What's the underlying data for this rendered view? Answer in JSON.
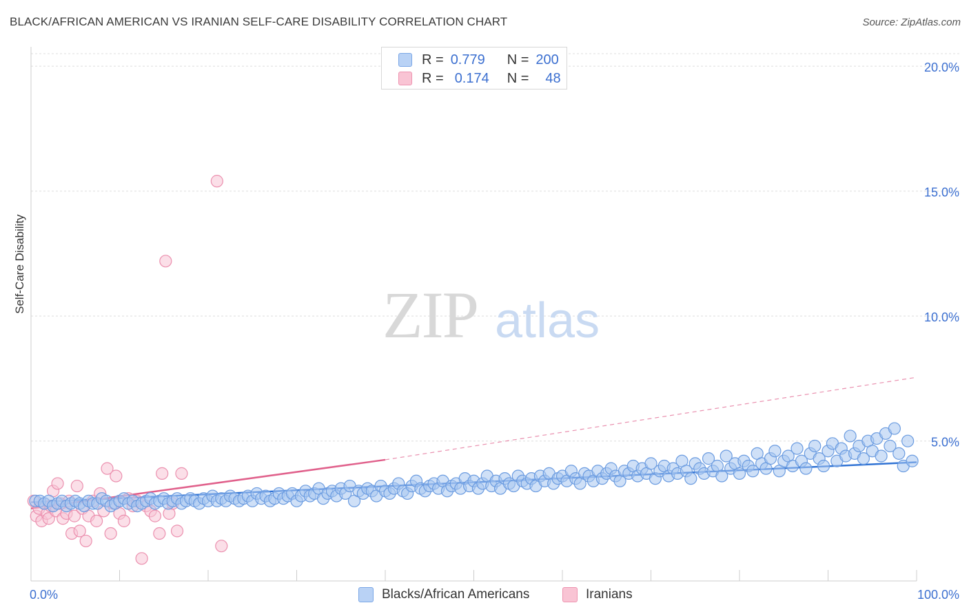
{
  "header": {
    "title": "BLACK/AFRICAN AMERICAN VS IRANIAN SELF-CARE DISABILITY CORRELATION CHART",
    "source": "Source: ZipAtlas.com"
  },
  "legend": {
    "r_label": "R =",
    "n_label": "N =",
    "series": [
      {
        "r": "0.779",
        "n": "200",
        "swatch_fill": "#b9d2f5",
        "swatch_stroke": "#7aa6e6"
      },
      {
        "r": "0.174",
        "n": "48",
        "swatch_fill": "#f9c4d4",
        "swatch_stroke": "#ee93b0"
      }
    ]
  },
  "watermark": {
    "zip": "ZIP",
    "atlas": "atlas"
  },
  "colors": {
    "blue_fill": "#a8c6f0",
    "blue_stroke": "#6a9be0",
    "blue_line": "#2f72d4",
    "pink_fill": "#f8c5d5",
    "pink_stroke": "#eb8fae",
    "pink_line": "#e0608b",
    "axis_text": "#3b6fd0",
    "grid": "#dddddd"
  },
  "chart_data": {
    "type": "scatter",
    "title": "BLACK/AFRICAN AMERICAN VS IRANIAN SELF-CARE DISABILITY CORRELATION CHART",
    "xlabel": "",
    "ylabel": "Self-Care Disability",
    "xlim": [
      0,
      100
    ],
    "ylim": [
      -0.6,
      20.5
    ],
    "x_tick_labels": [
      "0.0%",
      "100.0%"
    ],
    "y_ticks": [
      5,
      10,
      15,
      20
    ],
    "y_tick_labels": [
      "5.0%",
      "10.0%",
      "15.0%",
      "20.0%"
    ],
    "grid": true,
    "legend_placement": "top-center",
    "series": [
      {
        "name": "Blacks/African Americans",
        "r": 0.779,
        "n": 200,
        "trend": {
          "x0": 0,
          "y0": 2.55,
          "x1": 100,
          "y1": 4.15
        },
        "points": [
          [
            0.5,
            2.6
          ],
          [
            1,
            2.6
          ],
          [
            1.5,
            2.5
          ],
          [
            2,
            2.6
          ],
          [
            2.5,
            2.4
          ],
          [
            3,
            2.5
          ],
          [
            3.5,
            2.6
          ],
          [
            4,
            2.4
          ],
          [
            4.5,
            2.5
          ],
          [
            5,
            2.6
          ],
          [
            5.5,
            2.5
          ],
          [
            6,
            2.4
          ],
          [
            6.5,
            2.6
          ],
          [
            7,
            2.5
          ],
          [
            7.5,
            2.5
          ],
          [
            8,
            2.7
          ],
          [
            8.5,
            2.6
          ],
          [
            9,
            2.4
          ],
          [
            9.5,
            2.5
          ],
          [
            10,
            2.6
          ],
          [
            10.5,
            2.7
          ],
          [
            11,
            2.5
          ],
          [
            11.5,
            2.6
          ],
          [
            12,
            2.4
          ],
          [
            12.5,
            2.5
          ],
          [
            13,
            2.6
          ],
          [
            13.5,
            2.7
          ],
          [
            14,
            2.5
          ],
          [
            14.5,
            2.6
          ],
          [
            15,
            2.7
          ],
          [
            15.5,
            2.5
          ],
          [
            16,
            2.6
          ],
          [
            16.5,
            2.7
          ],
          [
            17,
            2.5
          ],
          [
            17.5,
            2.6
          ],
          [
            18,
            2.7
          ],
          [
            18.5,
            2.6
          ],
          [
            19,
            2.5
          ],
          [
            19.5,
            2.7
          ],
          [
            20,
            2.6
          ],
          [
            20.5,
            2.8
          ],
          [
            21,
            2.6
          ],
          [
            21.5,
            2.7
          ],
          [
            22,
            2.6
          ],
          [
            22.5,
            2.8
          ],
          [
            23,
            2.7
          ],
          [
            23.5,
            2.6
          ],
          [
            24,
            2.7
          ],
          [
            24.5,
            2.8
          ],
          [
            25,
            2.6
          ],
          [
            25.5,
            2.9
          ],
          [
            26,
            2.7
          ],
          [
            26.5,
            2.8
          ],
          [
            27,
            2.6
          ],
          [
            27.5,
            2.7
          ],
          [
            28,
            2.9
          ],
          [
            28.5,
            2.7
          ],
          [
            29,
            2.8
          ],
          [
            29.5,
            2.9
          ],
          [
            30,
            2.6
          ],
          [
            30.5,
            2.8
          ],
          [
            31,
            3.0
          ],
          [
            31.5,
            2.8
          ],
          [
            32,
            2.9
          ],
          [
            32.5,
            3.1
          ],
          [
            33,
            2.7
          ],
          [
            33.5,
            2.9
          ],
          [
            34,
            3.0
          ],
          [
            34.5,
            2.8
          ],
          [
            35,
            3.1
          ],
          [
            35.5,
            2.9
          ],
          [
            36,
            3.2
          ],
          [
            36.5,
            2.6
          ],
          [
            37,
            3.0
          ],
          [
            37.5,
            2.9
          ],
          [
            38,
            3.1
          ],
          [
            38.5,
            3.0
          ],
          [
            39,
            2.8
          ],
          [
            39.5,
            3.2
          ],
          [
            40,
            3.0
          ],
          [
            40.5,
            2.9
          ],
          [
            41,
            3.1
          ],
          [
            41.5,
            3.3
          ],
          [
            42,
            3.0
          ],
          [
            42.5,
            2.9
          ],
          [
            43,
            3.2
          ],
          [
            43.5,
            3.4
          ],
          [
            44,
            3.1
          ],
          [
            44.5,
            3.0
          ],
          [
            45,
            3.2
          ],
          [
            45.5,
            3.3
          ],
          [
            46,
            3.1
          ],
          [
            46.5,
            3.4
          ],
          [
            47,
            3.0
          ],
          [
            47.5,
            3.2
          ],
          [
            48,
            3.3
          ],
          [
            48.5,
            3.1
          ],
          [
            49,
            3.5
          ],
          [
            49.5,
            3.2
          ],
          [
            50,
            3.4
          ],
          [
            50.5,
            3.1
          ],
          [
            51,
            3.3
          ],
          [
            51.5,
            3.6
          ],
          [
            52,
            3.2
          ],
          [
            52.5,
            3.4
          ],
          [
            53,
            3.1
          ],
          [
            53.5,
            3.5
          ],
          [
            54,
            3.3
          ],
          [
            54.5,
            3.2
          ],
          [
            55,
            3.6
          ],
          [
            55.5,
            3.4
          ],
          [
            56,
            3.3
          ],
          [
            56.5,
            3.5
          ],
          [
            57,
            3.2
          ],
          [
            57.5,
            3.6
          ],
          [
            58,
            3.4
          ],
          [
            58.5,
            3.7
          ],
          [
            59,
            3.3
          ],
          [
            59.5,
            3.5
          ],
          [
            60,
            3.6
          ],
          [
            60.5,
            3.4
          ],
          [
            61,
            3.8
          ],
          [
            61.5,
            3.5
          ],
          [
            62,
            3.3
          ],
          [
            62.5,
            3.7
          ],
          [
            63,
            3.6
          ],
          [
            63.5,
            3.4
          ],
          [
            64,
            3.8
          ],
          [
            64.5,
            3.5
          ],
          [
            65,
            3.7
          ],
          [
            65.5,
            3.9
          ],
          [
            66,
            3.6
          ],
          [
            66.5,
            3.4
          ],
          [
            67,
            3.8
          ],
          [
            67.5,
            3.7
          ],
          [
            68,
            4.0
          ],
          [
            68.5,
            3.6
          ],
          [
            69,
            3.9
          ],
          [
            69.5,
            3.7
          ],
          [
            70,
            4.1
          ],
          [
            70.5,
            3.5
          ],
          [
            71,
            3.8
          ],
          [
            71.5,
            4.0
          ],
          [
            72,
            3.6
          ],
          [
            72.5,
            3.9
          ],
          [
            73,
            3.7
          ],
          [
            73.5,
            4.2
          ],
          [
            74,
            3.8
          ],
          [
            74.5,
            3.5
          ],
          [
            75,
            4.1
          ],
          [
            75.5,
            3.9
          ],
          [
            76,
            3.7
          ],
          [
            76.5,
            4.3
          ],
          [
            77,
            3.8
          ],
          [
            77.5,
            4.0
          ],
          [
            78,
            3.6
          ],
          [
            78.5,
            4.4
          ],
          [
            79,
            3.9
          ],
          [
            79.5,
            4.1
          ],
          [
            80,
            3.7
          ],
          [
            80.5,
            4.2
          ],
          [
            81,
            4.0
          ],
          [
            81.5,
            3.8
          ],
          [
            82,
            4.5
          ],
          [
            82.5,
            4.1
          ],
          [
            83,
            3.9
          ],
          [
            83.5,
            4.3
          ],
          [
            84,
            4.6
          ],
          [
            84.5,
            3.8
          ],
          [
            85,
            4.2
          ],
          [
            85.5,
            4.4
          ],
          [
            86,
            4.0
          ],
          [
            86.5,
            4.7
          ],
          [
            87,
            4.2
          ],
          [
            87.5,
            3.9
          ],
          [
            88,
            4.5
          ],
          [
            88.5,
            4.8
          ],
          [
            89,
            4.3
          ],
          [
            89.5,
            4.0
          ],
          [
            90,
            4.6
          ],
          [
            90.5,
            4.9
          ],
          [
            91,
            4.2
          ],
          [
            91.5,
            4.7
          ],
          [
            92,
            4.4
          ],
          [
            92.5,
            5.2
          ],
          [
            93,
            4.5
          ],
          [
            93.5,
            4.8
          ],
          [
            94,
            4.3
          ],
          [
            94.5,
            5.0
          ],
          [
            95,
            4.6
          ],
          [
            95.5,
            5.1
          ],
          [
            96,
            4.4
          ],
          [
            96.5,
            5.3
          ],
          [
            97,
            4.8
          ],
          [
            97.5,
            5.5
          ],
          [
            98,
            4.5
          ],
          [
            98.5,
            4.0
          ],
          [
            99,
            5.0
          ],
          [
            99.5,
            4.2
          ]
        ]
      },
      {
        "name": "Iranians",
        "r": 0.174,
        "n": 48,
        "trend": {
          "x0": 0,
          "y0": 2.3,
          "x1": 40,
          "y1": 4.25
        },
        "trend_dashed": {
          "x0": 40,
          "y0": 4.25,
          "x1": 100,
          "y1": 7.55
        },
        "points": [
          [
            0.3,
            2.6
          ],
          [
            0.6,
            2.0
          ],
          [
            0.9,
            2.3
          ],
          [
            1.2,
            1.8
          ],
          [
            1.5,
            2.5
          ],
          [
            1.8,
            2.1
          ],
          [
            2.0,
            1.9
          ],
          [
            2.2,
            2.4
          ],
          [
            2.5,
            3.0
          ],
          [
            2.8,
            2.2
          ],
          [
            3.0,
            3.3
          ],
          [
            3.3,
            2.5
          ],
          [
            3.6,
            1.9
          ],
          [
            4.0,
            2.1
          ],
          [
            4.3,
            2.6
          ],
          [
            4.6,
            1.3
          ],
          [
            4.9,
            2.0
          ],
          [
            5.2,
            3.2
          ],
          [
            5.5,
            1.4
          ],
          [
            5.8,
            2.3
          ],
          [
            6.2,
            1.0
          ],
          [
            6.5,
            2.0
          ],
          [
            7.0,
            2.6
          ],
          [
            7.4,
            1.8
          ],
          [
            7.8,
            2.9
          ],
          [
            8.2,
            2.2
          ],
          [
            8.6,
            3.9
          ],
          [
            9.0,
            1.3
          ],
          [
            9.3,
            2.5
          ],
          [
            9.6,
            3.6
          ],
          [
            10.0,
            2.1
          ],
          [
            10.5,
            1.8
          ],
          [
            11.0,
            2.7
          ],
          [
            11.5,
            2.4
          ],
          [
            12.0,
            2.6
          ],
          [
            12.5,
            0.3
          ],
          [
            13.0,
            2.4
          ],
          [
            13.5,
            2.2
          ],
          [
            14.0,
            2.0
          ],
          [
            14.5,
            1.3
          ],
          [
            14.8,
            3.7
          ],
          [
            15.2,
            12.2
          ],
          [
            15.6,
            2.1
          ],
          [
            16.0,
            2.5
          ],
          [
            16.5,
            1.4
          ],
          [
            17.0,
            3.7
          ],
          [
            21.0,
            15.4
          ],
          [
            21.5,
            0.8
          ]
        ]
      }
    ]
  }
}
